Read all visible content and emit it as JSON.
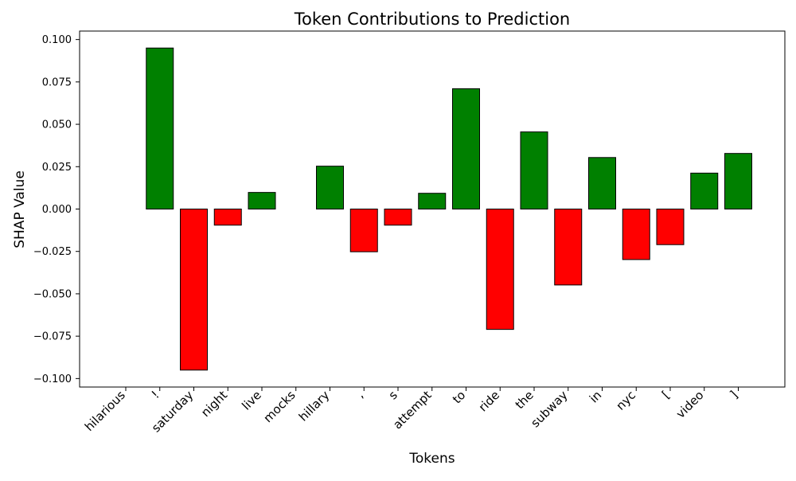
{
  "chart_data": {
    "type": "bar",
    "title": "Token Contributions to Prediction",
    "xlabel": "Tokens",
    "ylabel": "SHAP Value",
    "ylim": [
      -0.105,
      0.105
    ],
    "yticks": [
      0.1,
      0.075,
      0.05,
      0.025,
      0.0,
      -0.025,
      -0.05,
      -0.075,
      -0.1
    ],
    "ytick_labels": [
      "0.100",
      "0.075",
      "0.050",
      "0.025",
      "0.000",
      "−0.025",
      "−0.050",
      "−0.075",
      "−0.100"
    ],
    "categories": [
      "hilarious",
      "!",
      "saturday",
      "night",
      "live",
      "mocks",
      "hillary",
      ",",
      "s",
      "attempt",
      "to",
      "ride",
      "the",
      "subway",
      "in",
      "nyc",
      "[",
      "video",
      "]"
    ],
    "values": [
      0.0,
      0.095,
      -0.095,
      -0.0095,
      0.0098,
      0.0,
      0.0253,
      -0.0252,
      -0.0095,
      0.0093,
      0.071,
      -0.071,
      0.0455,
      -0.0448,
      0.0304,
      -0.0298,
      -0.021,
      0.0212,
      0.0328
    ],
    "grid": false,
    "legend": "none",
    "colors": {
      "positive": "#008000",
      "negative": "#ff0000",
      "edge": "#000000",
      "axes": "#000000",
      "background": "#ffffff"
    }
  }
}
